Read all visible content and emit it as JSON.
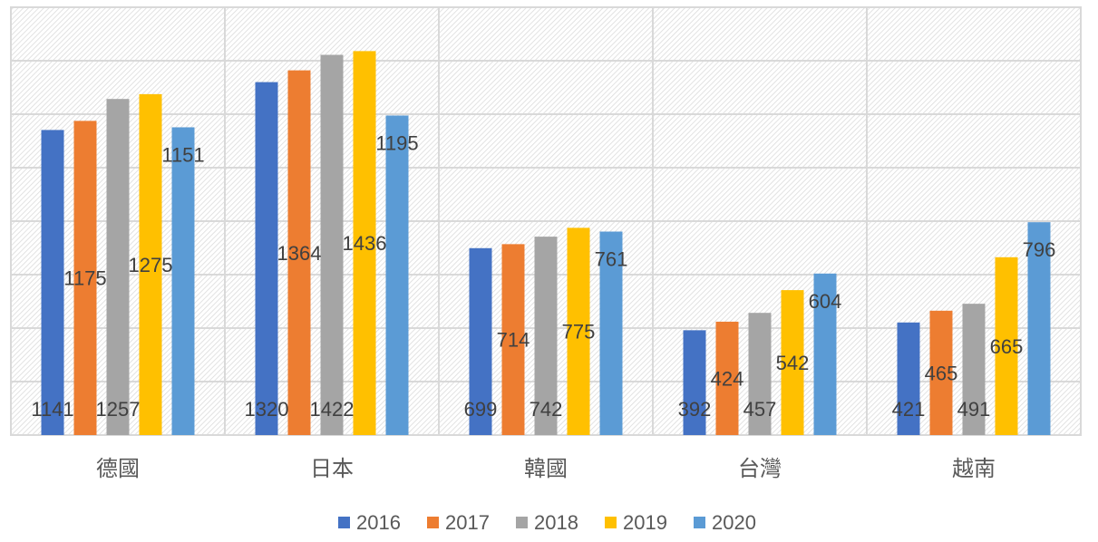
{
  "chart_data": {
    "type": "bar",
    "title": "",
    "xlabel": "",
    "ylabel": "",
    "ylim": [
      0,
      1600
    ],
    "grid": true,
    "legend_position": "bottom",
    "categories": [
      "德國",
      "日本",
      "韓國",
      "台灣",
      "越南"
    ],
    "series": [
      {
        "name": "2016",
        "color": "#4472C4",
        "values": [
          1141,
          1320,
          699,
          392,
          421
        ]
      },
      {
        "name": "2017",
        "color": "#ED7D31",
        "values": [
          1175,
          1364,
          714,
          424,
          465
        ]
      },
      {
        "name": "2018",
        "color": "#A5A5A5",
        "values": [
          1257,
          1422,
          742,
          457,
          491
        ]
      },
      {
        "name": "2019",
        "color": "#FFC000",
        "values": [
          1275,
          1436,
          775,
          542,
          665
        ]
      },
      {
        "name": "2020",
        "color": "#5B9BD5",
        "values": [
          1151,
          1195,
          761,
          604,
          796
        ]
      }
    ]
  }
}
